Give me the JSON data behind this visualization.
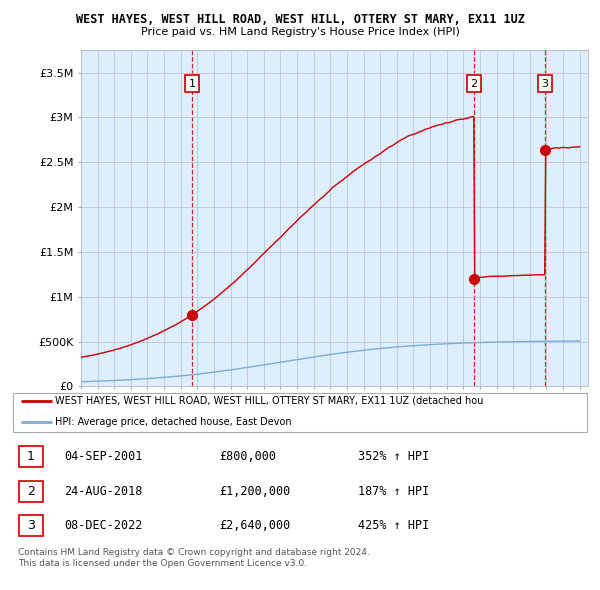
{
  "title": "WEST HAYES, WEST HILL ROAD, WEST HILL, OTTERY ST MARY, EX11 1UZ",
  "subtitle": "Price paid vs. HM Land Registry's House Price Index (HPI)",
  "ylim": [
    0,
    3750000
  ],
  "yticks": [
    0,
    500000,
    1000000,
    1500000,
    2000000,
    2500000,
    3000000,
    3500000
  ],
  "ytick_labels": [
    "£0",
    "£500K",
    "£1M",
    "£1.5M",
    "£2M",
    "£2.5M",
    "£3M",
    "£3.5M"
  ],
  "x_start_year": 1995,
  "x_end_year": 2025,
  "sales": [
    {
      "year": 2001.67,
      "value": 800000,
      "label": "1"
    },
    {
      "year": 2018.65,
      "value": 1200000,
      "label": "2"
    },
    {
      "year": 2022.92,
      "value": 2640000,
      "label": "3"
    }
  ],
  "hpi_color": "#7aadd4",
  "price_color": "#cc0000",
  "dashed_color": "#cc0000",
  "chart_bg_color": "#ddeeff",
  "background_color": "#ffffff",
  "grid_color": "#bbbbcc",
  "legend_entries": [
    "WEST HAYES, WEST HILL ROAD, WEST HILL, OTTERY ST MARY, EX11 1UZ (detached hou",
    "HPI: Average price, detached house, East Devon"
  ],
  "table_rows": [
    {
      "num": "1",
      "date": "04-SEP-2001",
      "price": "£800,000",
      "hpi": "352% ↑ HPI"
    },
    {
      "num": "2",
      "date": "24-AUG-2018",
      "price": "£1,200,000",
      "hpi": "187% ↑ HPI"
    },
    {
      "num": "3",
      "date": "08-DEC-2022",
      "price": "£2,640,000",
      "hpi": "425% ↑ HPI"
    }
  ],
  "footer": "Contains HM Land Registry data © Crown copyright and database right 2024.\nThis data is licensed under the Open Government Licence v3.0."
}
